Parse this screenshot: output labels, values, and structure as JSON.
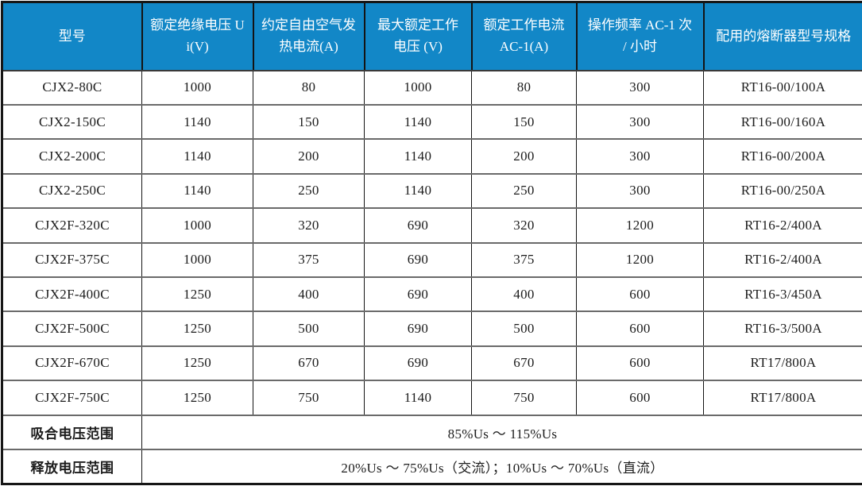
{
  "theme": {
    "header_bg": "#1287c7",
    "header_text": "#ffffff",
    "body_bg": "#ffffff",
    "body_text": "#1c1c1c",
    "outer_border": "#161616",
    "horizontal_grid": "#6a6a6a",
    "vertical_grid": "#141414"
  },
  "table": {
    "columns": [
      {
        "label": "型号"
      },
      {
        "label": "额定绝缘电压 Ui(V)"
      },
      {
        "label": "约定自由空气发热电流(A)"
      },
      {
        "label": "最大额定工作电压 (V)"
      },
      {
        "label": "额定工作电流 AC-1(A)"
      },
      {
        "label": "操作频率 AC-1 次 / 小时"
      },
      {
        "label": "配用的熔断器型号规格"
      }
    ],
    "rows": [
      [
        "CJX2-80C",
        "1000",
        "80",
        "1000",
        "80",
        "300",
        "RT16-00/100A"
      ],
      [
        "CJX2-150C",
        "1140",
        "150",
        "1140",
        "150",
        "300",
        "RT16-00/160A"
      ],
      [
        "CJX2-200C",
        "1140",
        "200",
        "1140",
        "200",
        "300",
        "RT16-00/200A"
      ],
      [
        "CJX2-250C",
        "1140",
        "250",
        "1140",
        "250",
        "300",
        "RT16-00/250A"
      ],
      [
        "CJX2F-320C",
        "1000",
        "320",
        "690",
        "320",
        "1200",
        "RT16-2/400A"
      ],
      [
        "CJX2F-375C",
        "1000",
        "375",
        "690",
        "375",
        "1200",
        "RT16-2/400A"
      ],
      [
        "CJX2F-400C",
        "1250",
        "400",
        "690",
        "400",
        "600",
        "RT16-3/450A"
      ],
      [
        "CJX2F-500C",
        "1250",
        "500",
        "690",
        "500",
        "600",
        "RT16-3/500A"
      ],
      [
        "CJX2F-670C",
        "1250",
        "670",
        "690",
        "670",
        "600",
        "RT17/800A"
      ],
      [
        "CJX2F-750C",
        "1250",
        "750",
        "1140",
        "750",
        "600",
        "RT17/800A"
      ]
    ],
    "footer_rows": [
      {
        "label": "吸合电压范围",
        "value": "85%Us ～ 115%Us"
      },
      {
        "label": "释放电压范围",
        "value": "20%Us ～ 75%Us（交流）；10%Us ～ 70%Us（直流）"
      }
    ]
  }
}
